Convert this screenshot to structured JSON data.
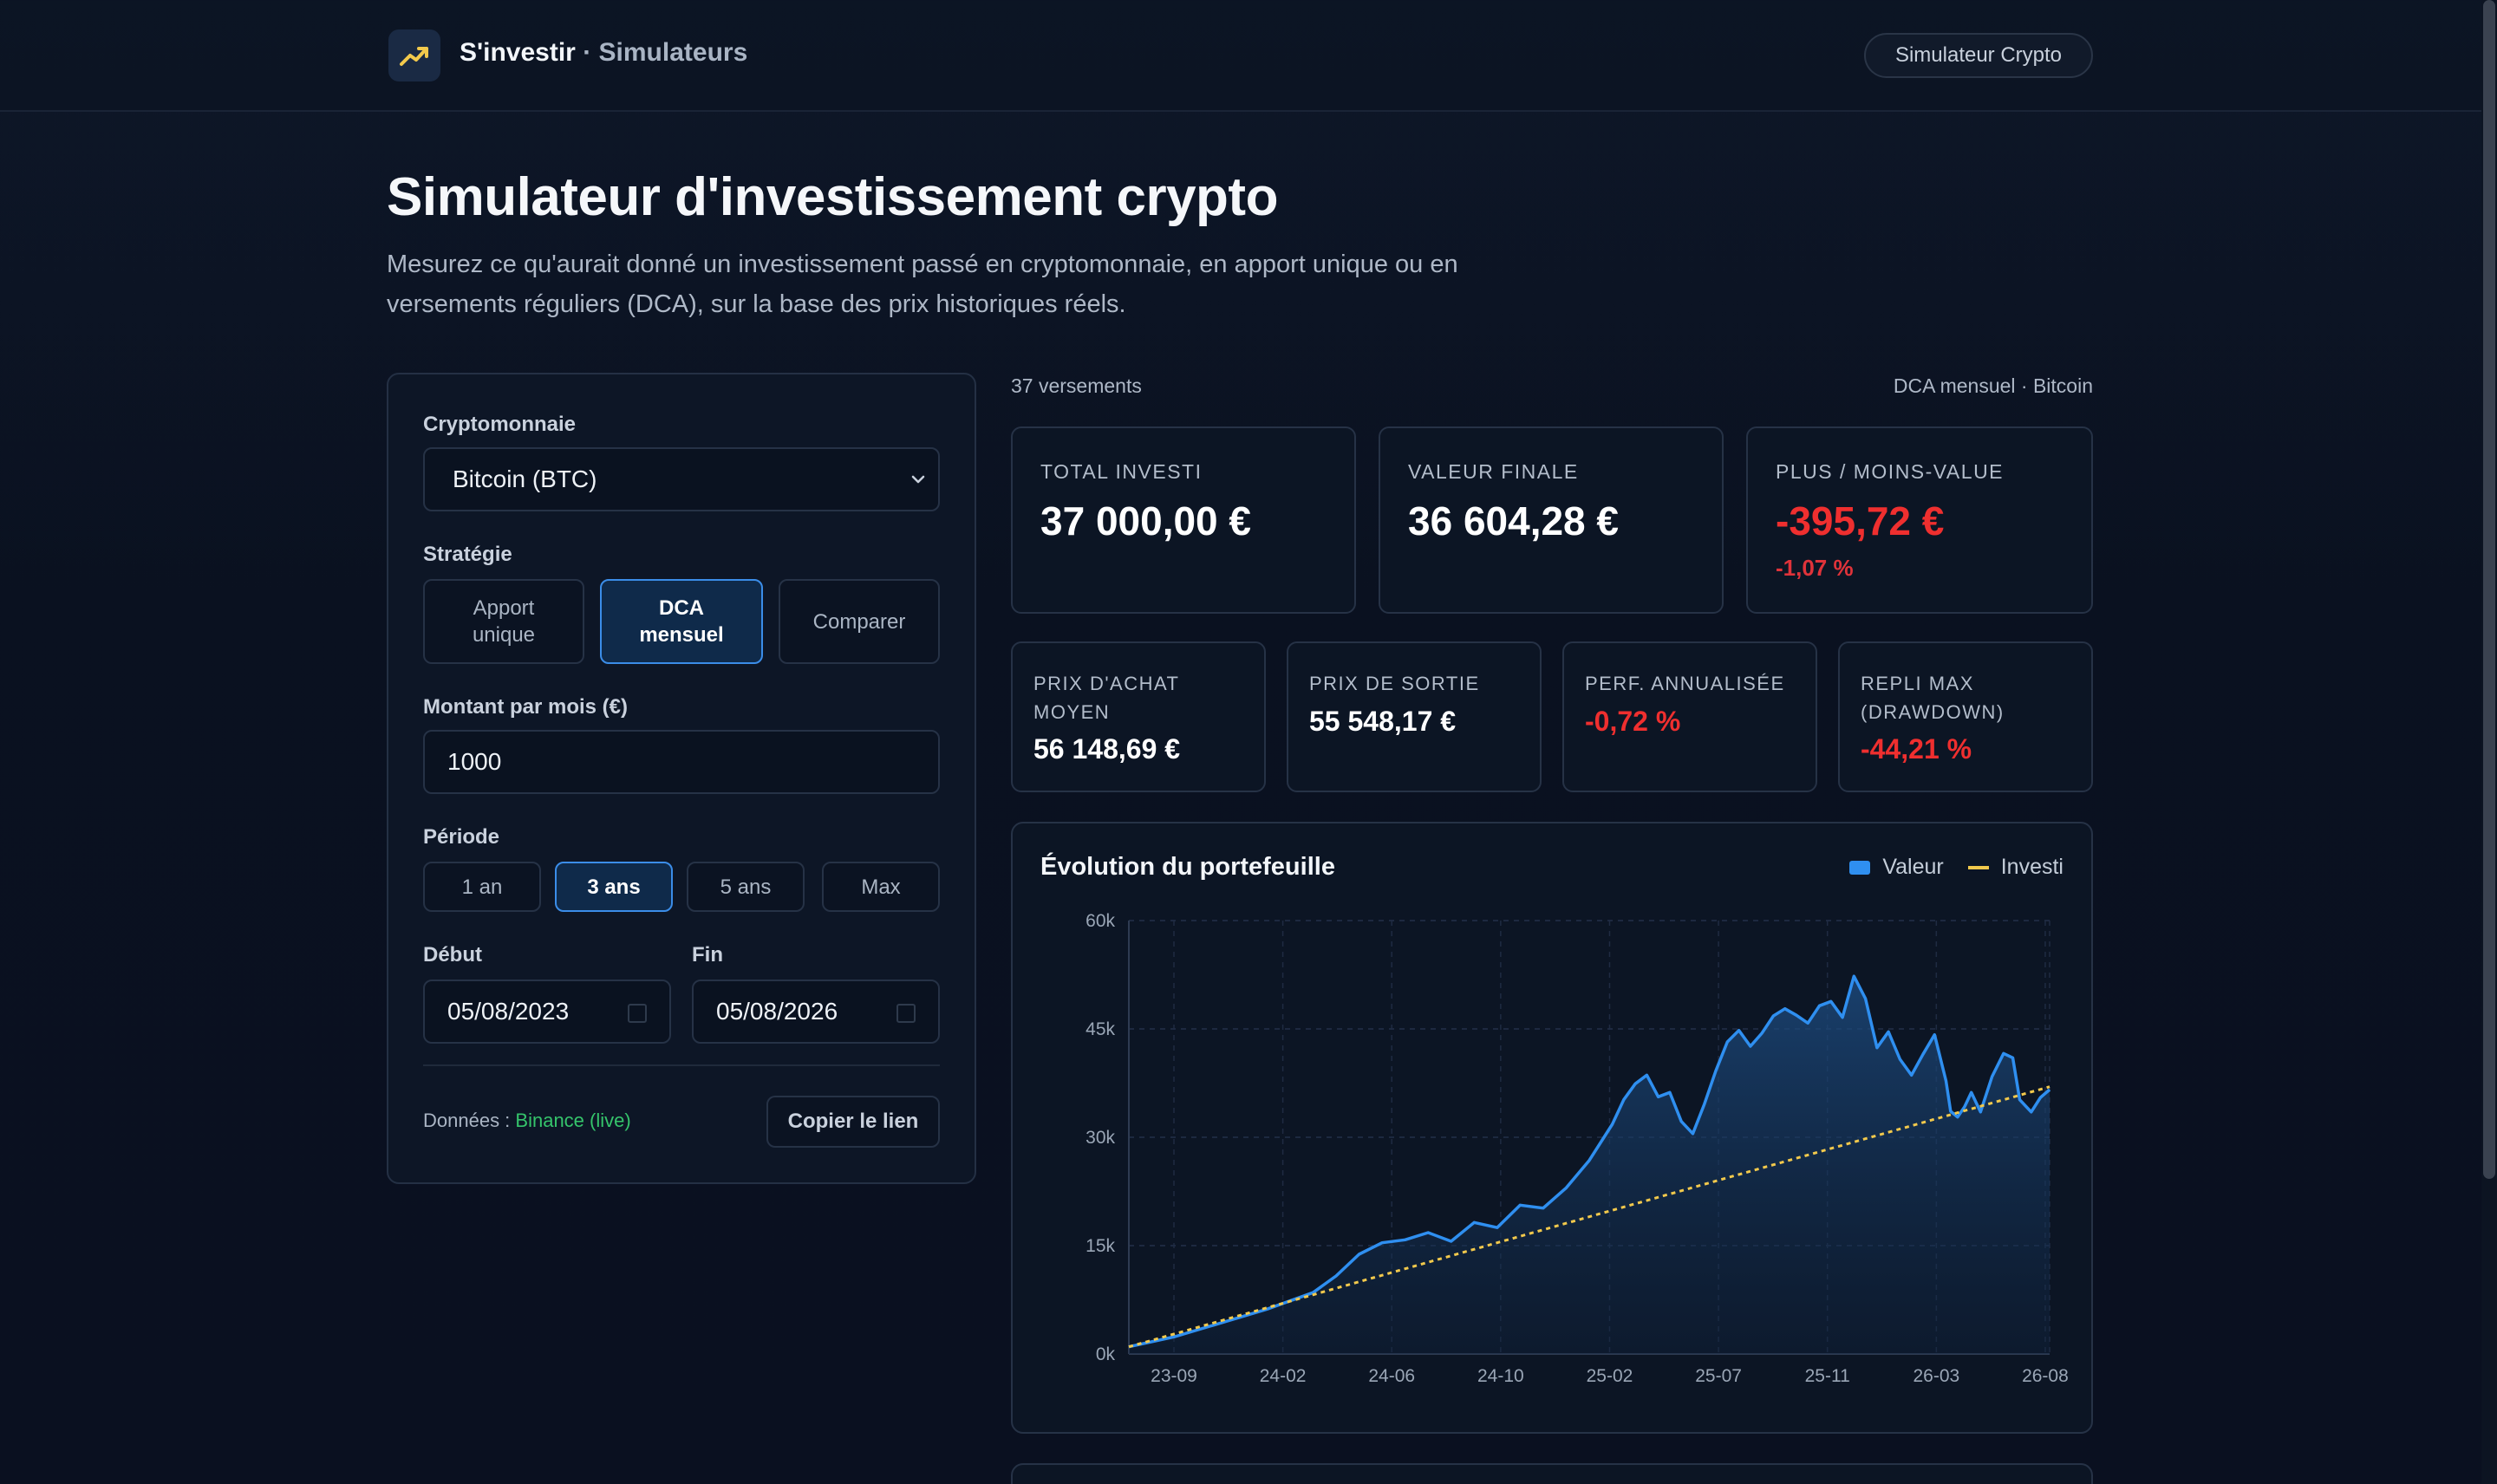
{
  "header": {
    "brand": "S'investir",
    "section": "· Simulateurs",
    "pill": "Simulateur Crypto"
  },
  "page": {
    "title": "Simulateur d'investissement crypto",
    "lede": "Mesurez ce qu'aurait donné un investissement passé en cryptomonnaie, en apport unique ou en versements réguliers (DCA), sur la base des prix historiques réels."
  },
  "form": {
    "crypto_label": "Cryptomonnaie",
    "crypto_value": "Bitcoin (BTC)",
    "strategy_label": "Stratégie",
    "strategies": [
      {
        "label": "Apport\nunique",
        "active": false
      },
      {
        "label": "DCA\nmensuel",
        "active": true
      },
      {
        "label": "Comparer",
        "active": false
      }
    ],
    "amount_label": "Montant par mois (€)",
    "amount_value": "1000",
    "period_label": "Période",
    "periods": [
      {
        "label": "1 an",
        "active": false
      },
      {
        "label": "3 ans",
        "active": true
      },
      {
        "label": "5 ans",
        "active": false
      },
      {
        "label": "Max",
        "active": false
      }
    ],
    "start_label": "Début",
    "start_value": "05/08/2023",
    "end_label": "Fin",
    "end_value": "05/08/2026",
    "data_prefix": "Données : ",
    "data_source": "Binance (live)",
    "copy_label": "Copier le lien"
  },
  "results": {
    "count": "37 versements",
    "strategy_summary": "DCA mensuel · Bitcoin",
    "total_invested": {
      "label": "TOTAL INVESTI",
      "value": "37 000,00 €"
    },
    "final_value": {
      "label": "VALEUR FINALE",
      "value": "36 604,28 €"
    },
    "gain": {
      "label": "PLUS / MOINS-VALUE",
      "value": "-395,72 €",
      "pct": "-1,07 %"
    },
    "avg_price": {
      "label": "PRIX D'ACHAT\nMOYEN",
      "value": "56 148,69 €"
    },
    "exit_price": {
      "label": "PRIX DE SORTIE",
      "value": "55 548,17 €"
    },
    "annualized": {
      "label": "PERF. ANNUALISÉE",
      "value": "-0,72 %"
    },
    "drawdown": {
      "label": "REPLI MAX\n(DRAWDOWN)",
      "value": "-44,21 %"
    }
  },
  "colors": {
    "accent": "#2f8ff0",
    "invested_line": "#f2c94c",
    "negative": "#ef2f2f",
    "positive_link": "#35c46b"
  },
  "chart_data": {
    "type": "area",
    "title": "Évolution du portefeuille",
    "x_tick_labels": [
      "23-09",
      "24-02",
      "24-06",
      "24-10",
      "25-02",
      "25-07",
      "25-11",
      "26-03",
      "26-08"
    ],
    "y_tick_labels": [
      "60k",
      "45k",
      "30k",
      "15k",
      "0k"
    ],
    "ylim": [
      0,
      60000
    ],
    "grid": true,
    "legend": "top-right",
    "series": [
      {
        "name": "Valeur",
        "color": "#2f8ff0",
        "points": [
          [
            0,
            1000
          ],
          [
            2,
            2400
          ],
          [
            4,
            4300
          ],
          [
            6,
            6200
          ],
          [
            8,
            8500
          ],
          [
            9,
            10800
          ],
          [
            10,
            13800
          ],
          [
            11,
            15400
          ],
          [
            12,
            15800
          ],
          [
            13,
            16800
          ],
          [
            14,
            15600
          ],
          [
            15,
            18200
          ],
          [
            16,
            17500
          ],
          [
            17,
            20600
          ],
          [
            18,
            20200
          ],
          [
            19,
            23000
          ],
          [
            20,
            26800
          ],
          [
            21,
            31800
          ],
          [
            21.5,
            35200
          ],
          [
            22,
            37400
          ],
          [
            22.5,
            38600
          ],
          [
            23,
            35600
          ],
          [
            23.5,
            36200
          ],
          [
            24,
            32200
          ],
          [
            24.5,
            30500
          ],
          [
            25,
            34600
          ],
          [
            25.5,
            39200
          ],
          [
            26,
            43200
          ],
          [
            26.5,
            44800
          ],
          [
            27,
            42600
          ],
          [
            27.5,
            44400
          ],
          [
            28,
            46800
          ],
          [
            28.5,
            47800
          ],
          [
            29,
            46900
          ],
          [
            29.5,
            45800
          ],
          [
            30,
            48200
          ],
          [
            30.5,
            48800
          ],
          [
            31,
            46600
          ],
          [
            31.5,
            52300
          ],
          [
            32,
            49200
          ],
          [
            32.5,
            42400
          ],
          [
            33,
            44600
          ],
          [
            33.5,
            40800
          ],
          [
            34,
            38600
          ],
          [
            34.5,
            41500
          ],
          [
            35,
            44200
          ],
          [
            35.5,
            37800
          ],
          [
            35.7,
            33600
          ],
          [
            36,
            32800
          ],
          [
            36.3,
            34200
          ],
          [
            36.6,
            36200
          ],
          [
            37,
            33500
          ],
          [
            37.5,
            38400
          ],
          [
            38,
            41600
          ],
          [
            38.4,
            41000
          ],
          [
            38.7,
            35200
          ],
          [
            39.2,
            33500
          ],
          [
            39.6,
            35500
          ],
          [
            40,
            36600
          ]
        ]
      },
      {
        "name": "Investi",
        "color": "#f2c94c",
        "points": [
          [
            0,
            1000
          ],
          [
            40,
            37000
          ]
        ]
      }
    ]
  }
}
